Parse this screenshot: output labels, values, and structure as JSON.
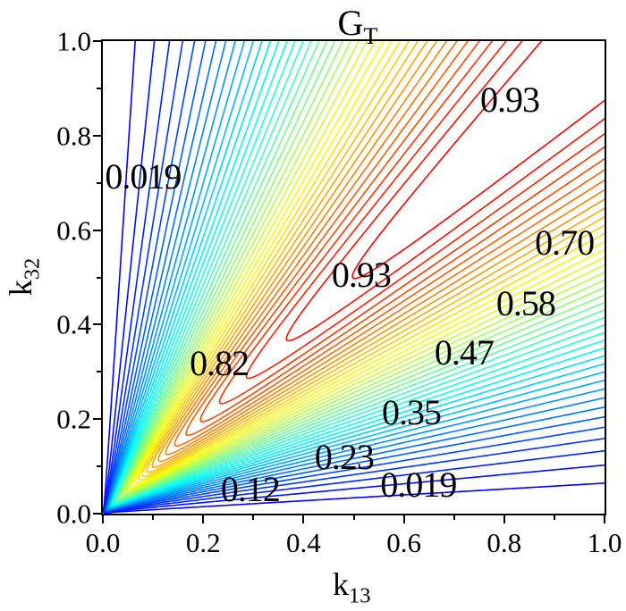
{
  "title": {
    "text": "G",
    "subscript": "T"
  },
  "x_axis": {
    "label": "k",
    "label_subscript": "13",
    "tick_labels": [
      "0.0",
      "0.2",
      "0.4",
      "0.6",
      "0.8",
      "1.0"
    ],
    "tick_values": [
      0,
      0.2,
      0.4,
      0.6,
      0.8,
      1.0
    ],
    "minor_tick_values": [
      0.1,
      0.3,
      0.5,
      0.7,
      0.9
    ],
    "range": [
      0,
      1
    ]
  },
  "y_axis": {
    "label": "k",
    "label_subscript": "32",
    "tick_labels": [
      "0.0",
      "0.2",
      "0.4",
      "0.6",
      "0.8",
      "1.0"
    ],
    "tick_values": [
      0,
      0.2,
      0.4,
      0.6,
      0.8,
      1.0
    ],
    "minor_tick_values": [
      0.1,
      0.3,
      0.5,
      0.7,
      0.9
    ],
    "range": [
      0,
      1
    ]
  },
  "chart_data": {
    "type": "contour",
    "title": "G_T",
    "xlabel": "k_13",
    "ylabel": "k_32",
    "x_range": [
      0,
      1
    ],
    "y_range": [
      0,
      1
    ],
    "grid": false,
    "legend": "none",
    "function_model": "G(x,y) = sin(pi*min(x,y)/(2*max(x,y)))^1.7 * (x+y)/(x+y+0.075)",
    "levels_min": 0.019,
    "levels_max": 0.93,
    "levels_count": 41,
    "labeled_levels": [
      0.019,
      0.12,
      0.23,
      0.35,
      0.47,
      0.58,
      0.7,
      0.82,
      0.93
    ],
    "colormap": "jet",
    "colormap_low_hex": "#0000fa",
    "colormap_high_hex": "#fa0000",
    "line_width": 1.6,
    "frame_color": "#000000",
    "background_color": "#ffffff",
    "contour_labels": [
      {
        "text": "0.019",
        "x": 0.08,
        "y": 0.713
      },
      {
        "text": "0.93",
        "x": 0.811,
        "y": 0.875
      },
      {
        "text": "0.70",
        "x": 0.92,
        "y": 0.573
      },
      {
        "text": "0.58",
        "x": 0.843,
        "y": 0.444
      },
      {
        "text": "0.47",
        "x": 0.72,
        "y": 0.34
      },
      {
        "text": "0.93",
        "x": 0.515,
        "y": 0.505
      },
      {
        "text": "0.82",
        "x": 0.232,
        "y": 0.318
      },
      {
        "text": "0.35",
        "x": 0.615,
        "y": 0.214
      },
      {
        "text": "0.23",
        "x": 0.481,
        "y": 0.119
      },
      {
        "text": "0.12",
        "x": 0.294,
        "y": 0.051
      },
      {
        "text": "0.019",
        "x": 0.629,
        "y": 0.06
      }
    ]
  }
}
